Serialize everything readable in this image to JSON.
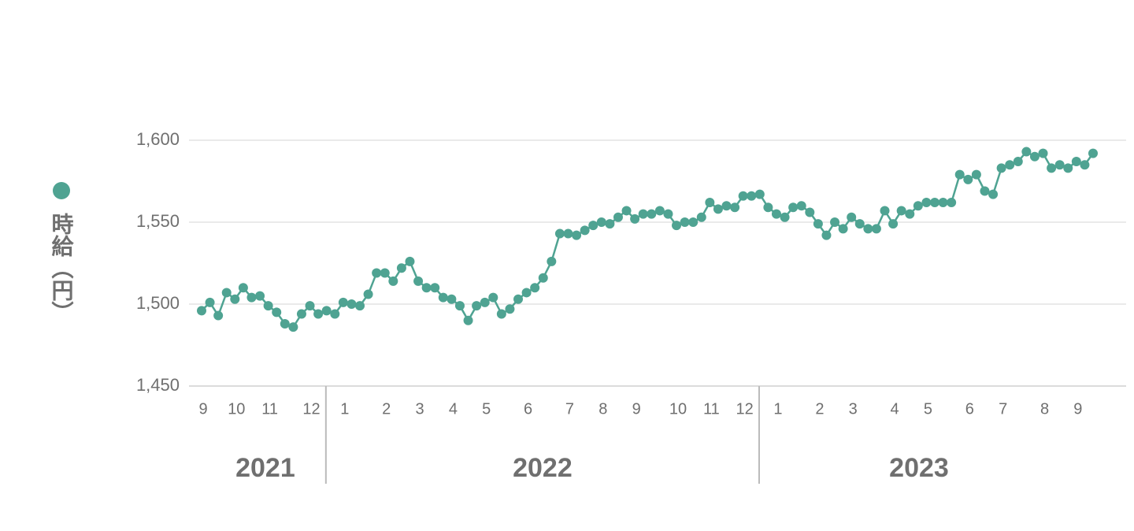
{
  "chart_data": {
    "type": "line",
    "categories": [
      "9",
      null,
      null,
      null,
      "10",
      null,
      null,
      null,
      "11",
      null,
      null,
      null,
      null,
      "12",
      null,
      null,
      null,
      "1",
      null,
      null,
      null,
      null,
      "2",
      null,
      null,
      null,
      "3",
      null,
      null,
      null,
      "4",
      null,
      null,
      null,
      "5",
      null,
      null,
      null,
      null,
      "6",
      null,
      null,
      null,
      null,
      "7",
      null,
      null,
      null,
      "8",
      null,
      null,
      null,
      "9",
      null,
      null,
      null,
      null,
      "10",
      null,
      null,
      null,
      "11",
      null,
      null,
      null,
      "12",
      null,
      null,
      null,
      "1",
      null,
      null,
      null,
      null,
      "2",
      null,
      null,
      null,
      "3",
      null,
      null,
      null,
      null,
      "4",
      null,
      null,
      null,
      "5",
      null,
      null,
      null,
      null,
      "6",
      null,
      null,
      null,
      "7",
      null,
      null,
      null,
      null,
      "8",
      null,
      null,
      null,
      "9",
      null,
      null
    ],
    "years": [
      "2021",
      "2022",
      "2023"
    ],
    "series": [
      {
        "name": "時給（円）",
        "color": "#4fa392",
        "values": [
          1496,
          1501,
          1493,
          1507,
          1503,
          1510,
          1504,
          1505,
          1499,
          1495,
          1488,
          1486,
          1494,
          1499,
          1494,
          1496,
          1494,
          1501,
          1500,
          1499,
          1506,
          1519,
          1519,
          1514,
          1522,
          1526,
          1514,
          1510,
          1510,
          1504,
          1503,
          1499,
          1490,
          1499,
          1501,
          1504,
          1494,
          1497,
          1503,
          1507,
          1510,
          1516,
          1526,
          1543,
          1543,
          1542,
          1545,
          1548,
          1550,
          1549,
          1553,
          1557,
          1552,
          1555,
          1555,
          1557,
          1555,
          1548,
          1550,
          1550,
          1553,
          1562,
          1558,
          1560,
          1559,
          1566,
          1566,
          1567,
          1559,
          1555,
          1553,
          1559,
          1560,
          1556,
          1549,
          1542,
          1550,
          1546,
          1553,
          1549,
          1546,
          1546,
          1557,
          1549,
          1557,
          1555,
          1560,
          1562,
          1562,
          1562,
          1562,
          1579,
          1576,
          1579,
          1569,
          1567,
          1583,
          1585,
          1587,
          1593,
          1590,
          1592,
          1583,
          1585,
          1583,
          1587,
          1585,
          1592
        ]
      }
    ],
    "ylim": [
      1450,
      1600
    ],
    "yticks": [
      {
        "value": 1450,
        "label": "1,450"
      },
      {
        "value": 1500,
        "label": "1,500"
      },
      {
        "value": 1550,
        "label": "1,550"
      },
      {
        "value": 1600,
        "label": "1,600"
      }
    ],
    "grid": true
  }
}
